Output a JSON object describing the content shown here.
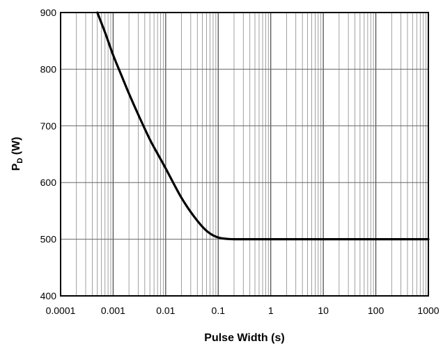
{
  "chart_data": {
    "type": "line",
    "xlabel": "Pulse Width (s)",
    "ylabel": {
      "main": "P",
      "sub": "D",
      "unit": " (W)"
    },
    "x_scale": "log",
    "xlim": [
      0.0001,
      1000
    ],
    "ylim": [
      400,
      900
    ],
    "grid": true,
    "x_tick_values": [
      0.0001,
      0.001,
      0.01,
      0.1,
      1,
      10,
      100,
      1000
    ],
    "x_tick_labels": [
      "0.0001",
      "0.001",
      "0.01",
      "0.1",
      "1",
      "10",
      "100",
      "1000"
    ],
    "y_tick_values": [
      400,
      500,
      600,
      700,
      800,
      900
    ],
    "y_tick_labels": [
      "400",
      "500",
      "600",
      "700",
      "800",
      "900"
    ],
    "series": [
      {
        "color": "#000000",
        "x": [
          0.0005,
          0.0007,
          0.001,
          0.0015,
          0.002,
          0.003,
          0.005,
          0.007,
          0.01,
          0.015,
          0.02,
          0.03,
          0.05,
          0.07,
          0.1,
          0.15,
          0.2,
          0.3,
          0.5,
          1,
          10,
          100,
          1000
        ],
        "y": [
          900,
          865,
          825,
          785,
          757,
          720,
          676,
          651,
          625,
          594,
          573,
          548,
          522,
          510,
          503,
          500.5,
          500,
          500,
          500,
          500,
          500,
          500,
          500
        ]
      }
    ]
  }
}
